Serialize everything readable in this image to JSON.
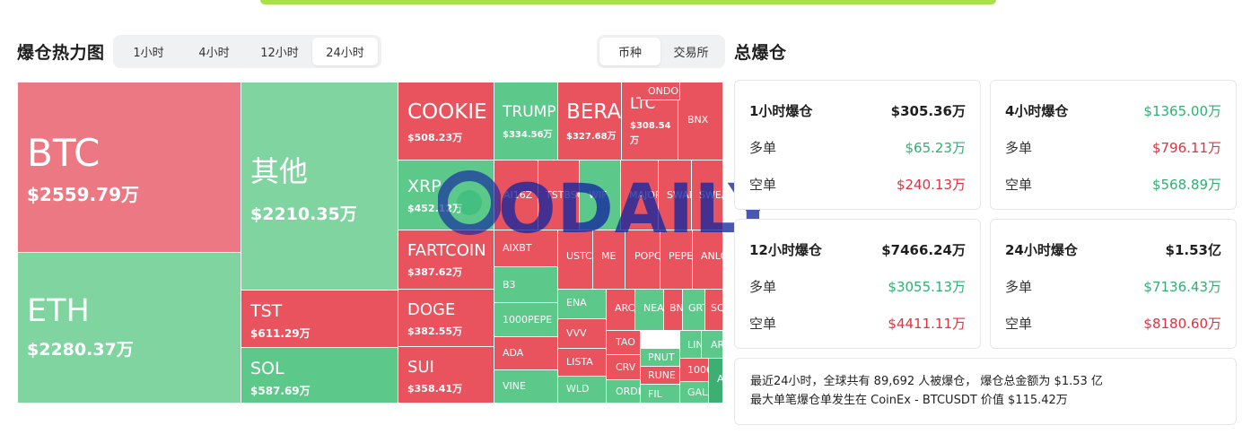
{
  "heatmap": {
    "title": "爆仓热力图",
    "time_tabs": [
      "1小时",
      "4小时",
      "12小时",
      "24小时"
    ],
    "type_tabs": [
      "币种",
      "交易所"
    ],
    "cells": [
      {
        "name": "BTC",
        "value": "$2559.79万"
      },
      {
        "name": "ETH",
        "value": "$2280.37万"
      },
      {
        "name": "其他",
        "value": "$2210.35万"
      },
      {
        "name": "TST",
        "value": "$611.29万"
      },
      {
        "name": "SOL",
        "value": "$587.69万"
      },
      {
        "name": "COOKIE",
        "value": "$508.23万"
      },
      {
        "name": "XRP",
        "value": "$452.12万"
      },
      {
        "name": "FARTCOIN",
        "value": "$387.62万"
      },
      {
        "name": "DOGE",
        "value": "$382.55万"
      },
      {
        "name": "SUI",
        "value": "$358.41万"
      },
      {
        "name": "TRUMP",
        "value": "$334.56万"
      },
      {
        "name": "BERA",
        "value": "$327.68万"
      },
      {
        "name": "LTC",
        "value": "$308.54万"
      },
      {
        "name": "BNX",
        "value": ""
      },
      {
        "name": "AI16Z",
        "value": ""
      },
      {
        "name": "TSTBSC",
        "value": ""
      },
      {
        "name": "WIF",
        "value": ""
      },
      {
        "name": "MAJOR",
        "value": ""
      },
      {
        "name": "SWARMS",
        "value": ""
      },
      {
        "name": "SWEAT",
        "value": ""
      },
      {
        "name": "AIXBT",
        "value": ""
      },
      {
        "name": "USTC",
        "value": ""
      },
      {
        "name": "ME",
        "value": ""
      },
      {
        "name": "POPCAT",
        "value": ""
      },
      {
        "name": "PEPE",
        "value": ""
      },
      {
        "name": "ANLOG",
        "value": ""
      },
      {
        "name": "B3",
        "value": ""
      },
      {
        "name": "1000PEPE",
        "value": ""
      },
      {
        "name": "ADA",
        "value": ""
      },
      {
        "name": "VINE",
        "value": ""
      },
      {
        "name": "ENA",
        "value": ""
      },
      {
        "name": "VVV",
        "value": ""
      },
      {
        "name": "LISTA",
        "value": ""
      },
      {
        "name": "WLD",
        "value": ""
      },
      {
        "name": "ARC",
        "value": ""
      },
      {
        "name": "TAO",
        "value": ""
      },
      {
        "name": "CRV",
        "value": ""
      },
      {
        "name": "ORDI",
        "value": ""
      },
      {
        "name": "NEAR",
        "value": ""
      },
      {
        "name": "BNB",
        "value": ""
      },
      {
        "name": "GRT",
        "value": ""
      },
      {
        "name": "SOLV",
        "value": ""
      },
      {
        "name": "ONDO",
        "value": ""
      },
      {
        "name": "PNUT",
        "value": ""
      },
      {
        "name": "RUNE",
        "value": ""
      },
      {
        "name": "FIL",
        "value": ""
      },
      {
        "name": "LINK",
        "value": ""
      },
      {
        "name": "ARB",
        "value": ""
      },
      {
        "name": "1000",
        "value": ""
      },
      {
        "name": "GALA",
        "value": ""
      },
      {
        "name": "A",
        "value": ""
      }
    ]
  },
  "watermark": "ODAILY",
  "totals": {
    "title": "总爆仓",
    "long_label": "多单",
    "short_label": "空单",
    "cards": [
      {
        "label": "1小时爆仓",
        "total": "$305.36万",
        "long": "$65.23万",
        "short": "$240.13万"
      },
      {
        "label": "4小时爆仓",
        "total": "$1365.00万",
        "long": "$796.11万",
        "short": "$568.89万"
      },
      {
        "label": "12小时爆仓",
        "total": "$7466.24万",
        "long": "$3055.13万",
        "short": "$4411.11万"
      },
      {
        "label": "24小时爆仓",
        "total": "$1.53亿",
        "long": "$7136.43万",
        "short": "$8180.60万"
      }
    ],
    "summary_line1": "最近24小时，全球共有 89,692 人被爆仓， 爆仓总金额为 $1.53 亿",
    "summary_line2": "最大单笔爆仓单发生在 CoinEx - BTCUSDT 价值 $115.42万"
  },
  "colors": {
    "red": "#e8535e",
    "green": "#5cc98a",
    "up_text": "#2fb070",
    "down_text": "#e0313f",
    "accent": "#a8e14a"
  }
}
